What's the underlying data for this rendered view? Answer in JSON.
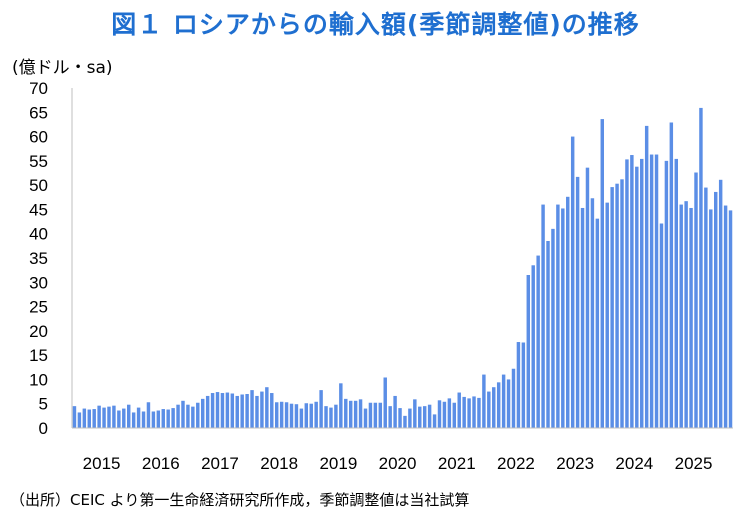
{
  "title": "図１ ロシアからの輸入額(季節調整値)の推移",
  "source": "（出所）CEIC より第一生命経済研究所作成，季節調整値は当社試算",
  "chart_data": {
    "type": "bar",
    "title": "図１ ロシアからの輸入額(季節調整値)の推移",
    "ylabel": "(億ドル・sa)",
    "xlabel": "",
    "ylim": [
      0,
      70
    ],
    "yticks": [
      0,
      5,
      10,
      15,
      20,
      25,
      30,
      35,
      40,
      45,
      50,
      55,
      60,
      65,
      70
    ],
    "xtick_labels": [
      "2015",
      "2016",
      "2017",
      "2018",
      "2019",
      "2020",
      "2021",
      "2022",
      "2023",
      "2024",
      "2025"
    ],
    "bar_color": "#5b8ee6",
    "start": "2015-01",
    "frequency": "monthly",
    "series": [
      {
        "name": "ロシアからの輸入額(季節調整値)",
        "values": [
          4.5,
          3.2,
          4.0,
          3.8,
          3.9,
          4.6,
          4.2,
          4.4,
          4.6,
          3.6,
          4.0,
          4.8,
          3.2,
          4.2,
          3.4,
          5.3,
          3.4,
          3.6,
          3.9,
          3.8,
          4.1,
          4.8,
          5.6,
          4.8,
          4.4,
          5.2,
          6.0,
          6.6,
          7.2,
          7.4,
          7.2,
          7.3,
          7.1,
          6.6,
          6.9,
          7.0,
          7.8,
          6.6,
          7.5,
          8.4,
          7.2,
          5.3,
          5.4,
          5.3,
          5.0,
          4.9,
          4.0,
          5.1,
          5.0,
          5.4,
          7.8,
          4.5,
          4.2,
          4.8,
          9.2,
          6.0,
          5.6,
          5.6,
          5.9,
          4.0,
          5.2,
          5.2,
          5.2,
          10.4,
          4.5,
          6.6,
          4.1,
          2.5,
          4.0,
          5.9,
          4.4,
          4.5,
          4.8,
          2.8,
          5.7,
          5.4,
          6.1,
          5.2,
          7.3,
          6.4,
          6.1,
          6.5,
          6.2,
          11.0,
          7.5,
          8.4,
          9.4,
          11.0,
          10.0,
          12.2,
          17.7,
          17.6,
          31.5,
          33.5,
          35.5,
          46.0,
          38.5,
          41.0,
          46.0,
          45.2,
          47.6,
          60.0,
          51.7,
          45.3,
          53.6,
          47.3,
          43.1,
          63.6,
          46.4,
          49.6,
          50.3,
          51.2,
          55.3,
          56.2,
          53.8,
          55.4,
          62.2,
          56.3,
          56.3,
          42.1,
          55.0,
          62.9,
          55.4,
          46.0,
          46.7,
          45.3,
          52.6,
          65.9,
          49.5,
          45.0,
          48.6,
          51.1,
          45.8,
          44.8
        ]
      }
    ]
  }
}
